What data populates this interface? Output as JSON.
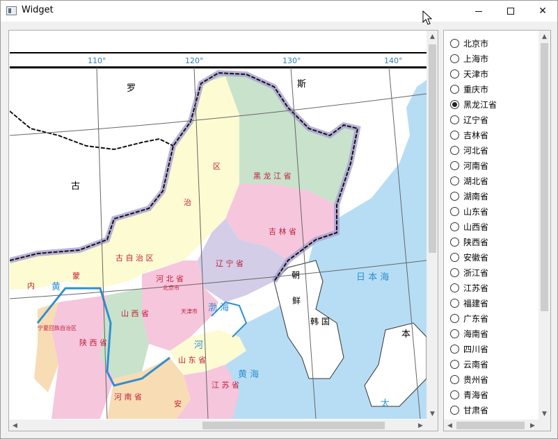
{
  "window": {
    "title": "Widget",
    "minimize_label": "",
    "close_label": "✕"
  },
  "map": {
    "longitudes": [
      "110°",
      "120°",
      "130°",
      "140°"
    ],
    "labels": {
      "luo": "罗",
      "si": "斯",
      "gu": "古",
      "meng": "蒙",
      "nei": "内",
      "heilongjiang": "黑 龙 江 省",
      "jilin": "吉 林 省",
      "liaoning": "辽 宁 省",
      "zizhiqu": "古 自 治 区",
      "zi": "治",
      "qu": "区",
      "hebei": "河 北 省",
      "beijing": "北京市",
      "tianjin": "天津市",
      "shanxi": "山 西 省",
      "shaanxi": "陕 西 省",
      "ningxia": "宁夏回族自治区",
      "shandong": "山 东 省",
      "henan": "河 南 省",
      "jiangsu": "江 苏 省",
      "anhui": "安",
      "chao": "朝",
      "xian": "鲜",
      "hanguo": "韩 国",
      "riben": "日 本 海",
      "bohai": "渤 海",
      "huanghai": "黄 海",
      "huang": "黄",
      "he": "河",
      "ben": "本",
      "tai": "太"
    }
  },
  "provinces": [
    {
      "name": "北京市",
      "checked": false
    },
    {
      "name": "上海市",
      "checked": false
    },
    {
      "name": "天津市",
      "checked": false
    },
    {
      "name": "重庆市",
      "checked": false
    },
    {
      "name": "黑龙江省",
      "checked": true
    },
    {
      "name": "辽宁省",
      "checked": false
    },
    {
      "name": "吉林省",
      "checked": false
    },
    {
      "name": "河北省",
      "checked": false
    },
    {
      "name": "河南省",
      "checked": false
    },
    {
      "name": "湖北省",
      "checked": false
    },
    {
      "name": "湖南省",
      "checked": false
    },
    {
      "name": "山东省",
      "checked": false
    },
    {
      "name": "山西省",
      "checked": false
    },
    {
      "name": "陕西省",
      "checked": false
    },
    {
      "name": "安徽省",
      "checked": false
    },
    {
      "name": "浙江省",
      "checked": false
    },
    {
      "name": "江苏省",
      "checked": false
    },
    {
      "name": "福建省",
      "checked": false
    },
    {
      "name": "广东省",
      "checked": false
    },
    {
      "name": "海南省",
      "checked": false
    },
    {
      "name": "四川省",
      "checked": false
    },
    {
      "name": "云南省",
      "checked": false
    },
    {
      "name": "贵州省",
      "checked": false
    },
    {
      "name": "青海省",
      "checked": false
    },
    {
      "name": "甘肃省",
      "checked": false
    }
  ],
  "colors": {
    "sea": "#b7ddf5",
    "heilongjiang": "#c8e2cc",
    "jilin": "#f6c6dc",
    "liaoning": "#d3cde8",
    "inner_mongolia": "#fdfbd2",
    "hebei": "#f6c6dc",
    "shanxi": "#c8e2cc",
    "shandong": "#fdfbd2",
    "henan": "#f8dcb4",
    "border": "#8e86c0"
  }
}
